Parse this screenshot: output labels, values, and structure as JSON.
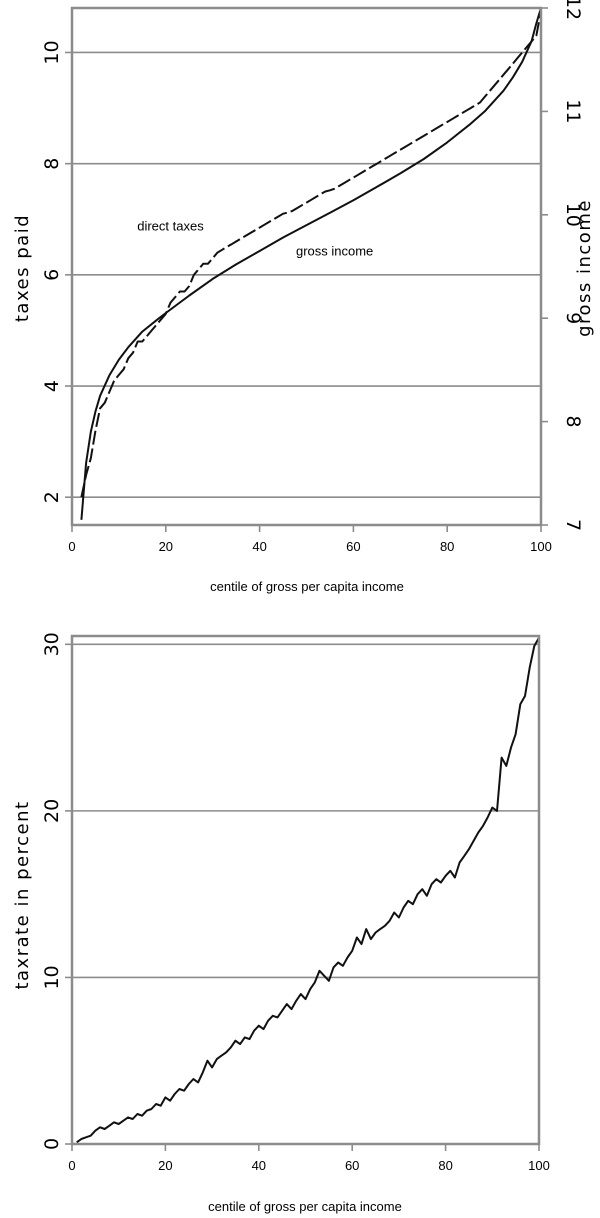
{
  "chart_data": [
    {
      "type": "line",
      "xlabel": "centile of gross per capita income",
      "ylabel": "taxes paid",
      "ylabel_right": "gross income",
      "xlim": [
        0,
        100
      ],
      "ylim": [
        1.5,
        10.8
      ],
      "ylim_right": [
        7.0,
        12.0
      ],
      "xticks": [
        0,
        20,
        40,
        60,
        80,
        100
      ],
      "yticks": [
        2,
        4,
        6,
        8,
        10
      ],
      "yticks_right": [
        7,
        8,
        9,
        10,
        11,
        12
      ],
      "grid": true,
      "annotations": [
        {
          "text": "direct taxes",
          "x": 21,
          "y": 6.8
        },
        {
          "text": "gross income",
          "x": 56,
          "y": 6.35
        }
      ],
      "series": [
        {
          "name": "direct taxes",
          "axis": "left",
          "style": "dashed",
          "x": [
            2,
            3,
            4,
            5,
            6,
            7,
            8,
            9,
            10,
            11,
            12,
            13,
            14,
            15,
            16,
            17,
            18,
            19,
            20,
            21,
            22,
            23,
            24,
            25,
            26,
            27,
            28,
            29,
            30,
            31,
            32,
            33,
            34,
            35,
            36,
            37,
            38,
            39,
            40,
            41,
            42,
            43,
            44,
            45,
            46,
            47,
            48,
            49,
            50,
            51,
            52,
            53,
            54,
            55,
            56,
            57,
            58,
            59,
            60,
            61,
            62,
            63,
            64,
            65,
            66,
            67,
            68,
            69,
            70,
            71,
            72,
            73,
            74,
            75,
            76,
            77,
            78,
            79,
            80,
            81,
            82,
            83,
            84,
            85,
            86,
            87,
            88,
            89,
            90,
            91,
            92,
            93,
            94,
            95,
            96,
            97,
            98,
            99,
            100
          ],
          "y": [
            2.0,
            2.4,
            2.7,
            3.2,
            3.6,
            3.7,
            3.9,
            4.1,
            4.2,
            4.3,
            4.5,
            4.6,
            4.8,
            4.8,
            4.9,
            5.0,
            5.1,
            5.2,
            5.3,
            5.5,
            5.6,
            5.7,
            5.7,
            5.8,
            6.0,
            6.1,
            6.2,
            6.2,
            6.3,
            6.4,
            6.45,
            6.5,
            6.55,
            6.6,
            6.65,
            6.7,
            6.75,
            6.8,
            6.85,
            6.9,
            6.95,
            7.0,
            7.05,
            7.1,
            7.12,
            7.15,
            7.2,
            7.25,
            7.3,
            7.35,
            7.4,
            7.45,
            7.5,
            7.52,
            7.55,
            7.6,
            7.65,
            7.7,
            7.75,
            7.8,
            7.85,
            7.9,
            7.95,
            8.0,
            8.05,
            8.1,
            8.15,
            8.2,
            8.25,
            8.3,
            8.35,
            8.4,
            8.45,
            8.5,
            8.55,
            8.6,
            8.65,
            8.7,
            8.75,
            8.8,
            8.85,
            8.9,
            8.95,
            9.0,
            9.05,
            9.1,
            9.2,
            9.3,
            9.4,
            9.5,
            9.6,
            9.7,
            9.8,
            9.9,
            10.0,
            10.1,
            10.2,
            10.3,
            10.75
          ]
        },
        {
          "name": "gross income",
          "axis": "right",
          "style": "solid",
          "x": [
            2,
            3,
            4,
            5,
            6,
            8,
            10,
            12,
            15,
            18,
            20,
            25,
            30,
            35,
            40,
            45,
            50,
            55,
            60,
            65,
            70,
            75,
            80,
            85,
            88,
            90,
            92,
            94,
            96,
            98,
            99,
            100
          ],
          "y": [
            7.05,
            7.6,
            7.9,
            8.1,
            8.25,
            8.45,
            8.6,
            8.72,
            8.87,
            8.98,
            9.05,
            9.22,
            9.38,
            9.52,
            9.65,
            9.78,
            9.9,
            10.02,
            10.14,
            10.27,
            10.4,
            10.54,
            10.7,
            10.88,
            11.0,
            11.1,
            11.2,
            11.33,
            11.48,
            11.68,
            11.85,
            12.0
          ]
        }
      ]
    },
    {
      "type": "line",
      "xlabel": "centile of gross per capita income",
      "ylabel": "taxrate in percent",
      "xlim": [
        0,
        100
      ],
      "ylim": [
        0,
        30.5
      ],
      "xticks": [
        0,
        20,
        40,
        60,
        80,
        100
      ],
      "yticks": [
        0,
        10,
        20,
        30
      ],
      "grid": true,
      "series": [
        {
          "style": "solid",
          "x": [
            1,
            2,
            3,
            4,
            5,
            6,
            7,
            8,
            9,
            10,
            11,
            12,
            13,
            14,
            15,
            16,
            17,
            18,
            19,
            20,
            21,
            22,
            23,
            24,
            25,
            26,
            27,
            28,
            29,
            30,
            31,
            32,
            33,
            34,
            35,
            36,
            37,
            38,
            39,
            40,
            41,
            42,
            43,
            44,
            45,
            46,
            47,
            48,
            49,
            50,
            51,
            52,
            53,
            54,
            55,
            56,
            57,
            58,
            59,
            60,
            61,
            62,
            63,
            64,
            65,
            66,
            67,
            68,
            69,
            70,
            71,
            72,
            73,
            74,
            75,
            76,
            77,
            78,
            79,
            80,
            81,
            82,
            83,
            84,
            85,
            86,
            87,
            88,
            89,
            90,
            91,
            92,
            93,
            94,
            95,
            96,
            97,
            98,
            99,
            100
          ],
          "y": [
            0.1,
            0.3,
            0.4,
            0.5,
            0.8,
            1.0,
            0.9,
            1.1,
            1.3,
            1.2,
            1.4,
            1.6,
            1.5,
            1.8,
            1.7,
            2.0,
            2.1,
            2.4,
            2.3,
            2.8,
            2.6,
            3.0,
            3.3,
            3.2,
            3.6,
            3.9,
            3.7,
            4.3,
            5.0,
            4.6,
            5.1,
            5.3,
            5.5,
            5.8,
            6.2,
            6.0,
            6.4,
            6.3,
            6.8,
            7.1,
            6.9,
            7.4,
            7.7,
            7.6,
            8.0,
            8.4,
            8.1,
            8.6,
            9.0,
            8.7,
            9.3,
            9.7,
            10.4,
            10.1,
            9.8,
            10.6,
            10.9,
            10.7,
            11.2,
            11.6,
            12.4,
            12.0,
            12.9,
            12.3,
            12.7,
            12.9,
            13.1,
            13.4,
            13.9,
            13.6,
            14.2,
            14.6,
            14.4,
            15.0,
            15.3,
            14.9,
            15.6,
            15.9,
            15.7,
            16.1,
            16.4,
            16.0,
            16.9,
            17.3,
            17.7,
            18.2,
            18.7,
            19.1,
            19.6,
            20.2,
            20.0,
            23.2,
            22.7,
            23.8,
            24.6,
            26.4,
            26.9,
            28.6,
            29.9,
            30.4
          ]
        }
      ]
    }
  ]
}
